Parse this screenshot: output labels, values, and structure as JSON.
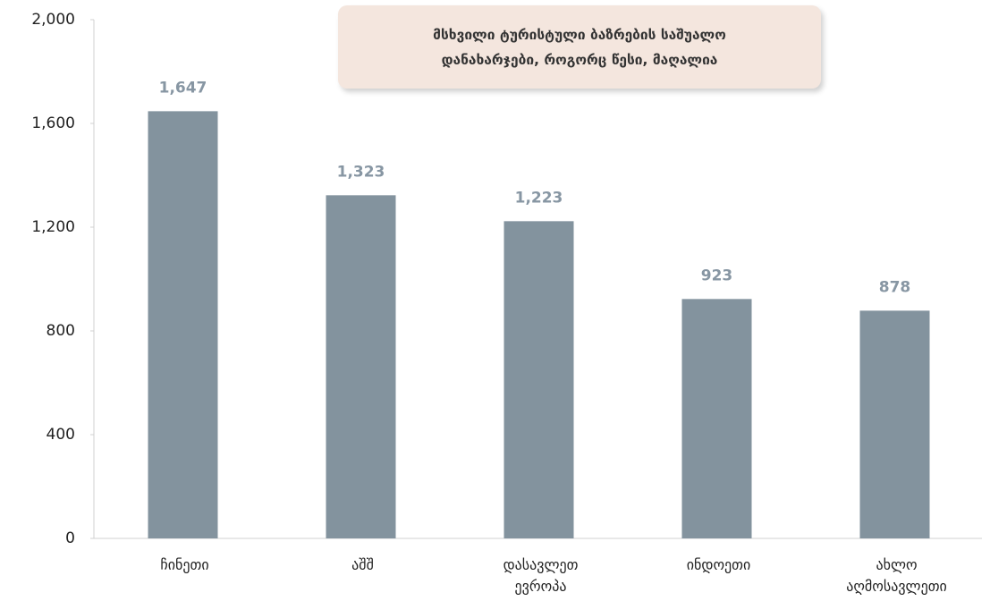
{
  "chart_data": {
    "type": "bar",
    "annotation": [
      "მსხვილი ტურისტული ბაზრების საშუალო",
      "დანახარჯები, როგორც წესი, მაღალია"
    ],
    "categories": [
      "ჩინეთი",
      "აშშ",
      "დასავლეთ ევროპა",
      "ინდოეთი",
      "ახლო აღმოსავლეთი"
    ],
    "values": [
      1647,
      1323,
      1223,
      923,
      878
    ],
    "value_labels": [
      "1,647",
      "1,323",
      "1,223",
      "923",
      "878"
    ],
    "color": "#83939e",
    "ylim": [
      0,
      2000
    ],
    "yticks": [
      0,
      400,
      800,
      {
        "value": 1200,
        "label": "1,200"
      },
      {
        "value": 1600,
        "label": "1,600"
      },
      {
        "value": 2000,
        "label": "2,000"
      }
    ],
    "grid": false
  }
}
